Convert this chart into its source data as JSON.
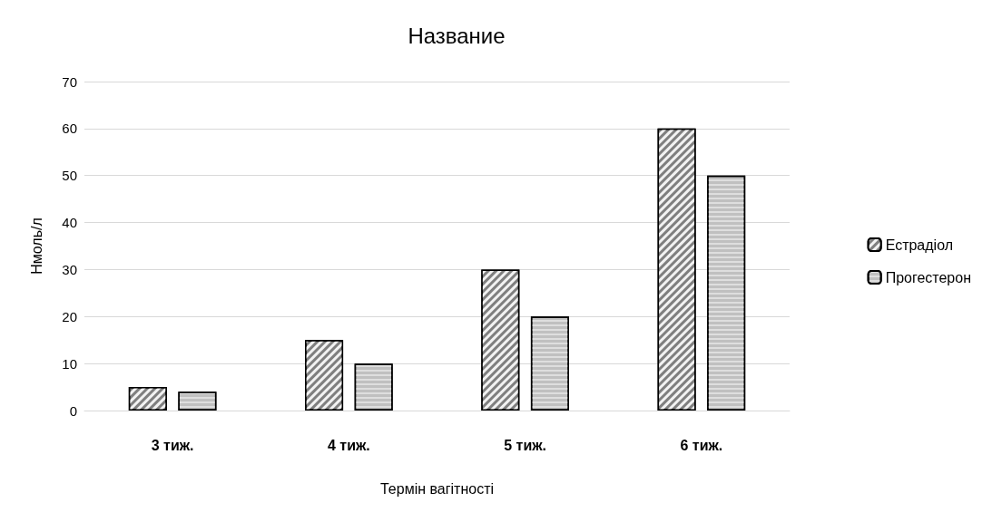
{
  "chart_data": {
    "type": "bar",
    "title": "Название",
    "xlabel": "Термін вагітності",
    "ylabel": "Нмоль/л",
    "categories": [
      "3 тиж.",
      "4 тиж.",
      "5 тиж.",
      "6 тиж."
    ],
    "series": [
      {
        "name": "Естрадіол",
        "color": "#7f7f7f",
        "values": [
          5,
          15,
          30,
          60
        ]
      },
      {
        "name": "Прогестерон",
        "color": "#c0c0c0",
        "values": [
          4,
          10,
          20,
          50
        ]
      }
    ],
    "ylim": [
      0,
      70
    ],
    "yticks": [
      0,
      10,
      20,
      30,
      40,
      50,
      60,
      70
    ],
    "grid": "y",
    "legend": "right"
  }
}
